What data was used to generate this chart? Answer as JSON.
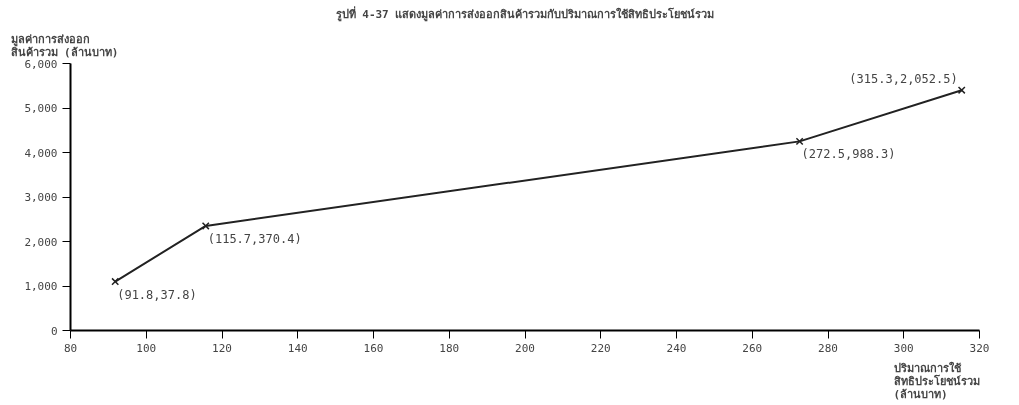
{
  "chart_data": {
    "type": "line",
    "title": "รูปที่ 4-37 แสดงมูลค่าการส่งออกสินค้ารวมกับปริมาณการใช้สิทธิประโยชน์รวม",
    "xlabel": "ปริมาณการใช้\nสิทธิประโยชน์รวม\n(ล้านบาท)",
    "ylabel": "มูลค่าการส่งออก\nสินค้ารวม (ล้านบาท)",
    "x": [
      91.8,
      115.7,
      272.5,
      315.3
    ],
    "series": [
      {
        "color": "#222222",
        "values": [
          1100,
          2350,
          4250,
          5400
        ]
      }
    ],
    "annotations": [
      {
        "text": "(91.8,37.8)",
        "x": 91.8,
        "y": 1100
      },
      {
        "text": "(115.7,370.4)",
        "x": 115.7,
        "y": 2350
      },
      {
        "text": "(272.5,988.3)",
        "x": 272.5,
        "y": 4250
      },
      {
        "text": "(315.3,2,052.5)",
        "x": 315.3,
        "y": 5400
      }
    ],
    "xlim": [
      80,
      320
    ],
    "xticks": [
      80,
      100,
      120,
      140,
      160,
      180,
      200,
      220,
      240,
      260,
      280,
      300,
      320
    ],
    "ylim": [
      0,
      6000
    ],
    "yticks": [
      0,
      {
        "value": 1000,
        "label": "1,000"
      },
      {
        "value": 2000,
        "label": "2,000"
      },
      {
        "value": 3000,
        "label": "3,000"
      },
      {
        "value": 4000,
        "label": "4,000"
      },
      {
        "value": 5000,
        "label": "5,000"
      },
      {
        "value": 6000,
        "label": "6,000"
      }
    ],
    "grid": false,
    "marker": "cross",
    "line_style": "solid"
  }
}
